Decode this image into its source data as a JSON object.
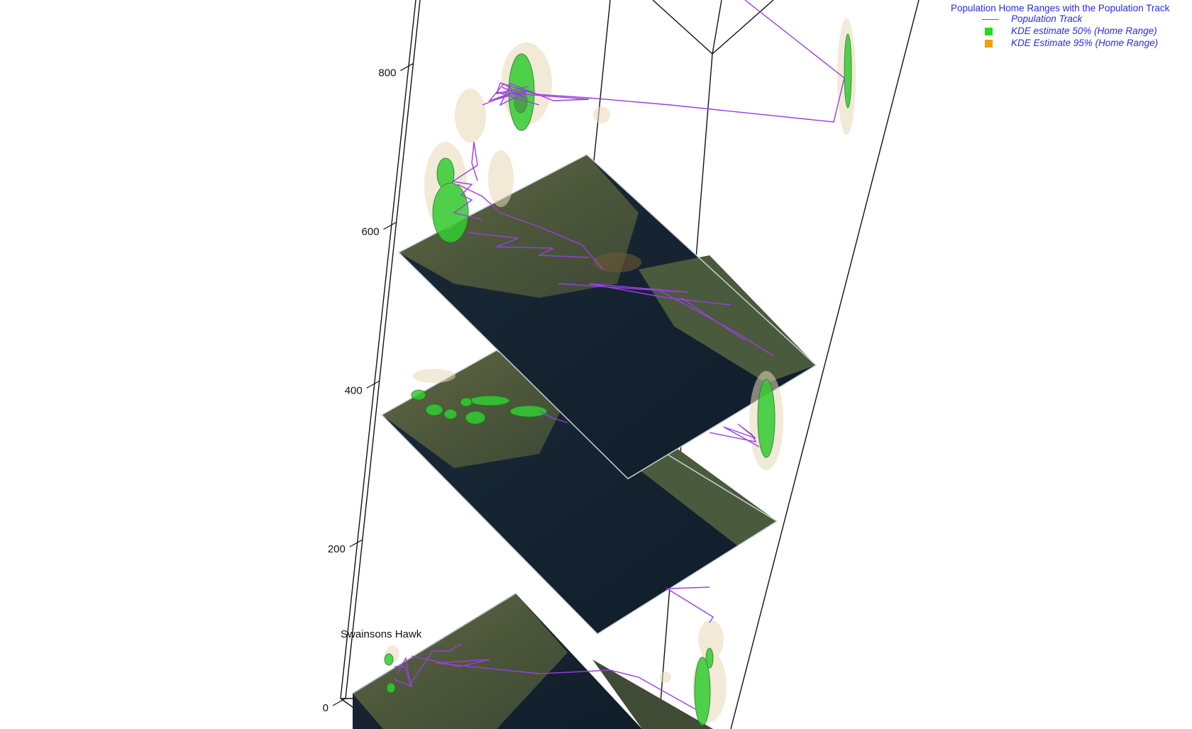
{
  "chart_data": {
    "type": "3d-space-time",
    "title": "",
    "legend": {
      "title": "Population Home Ranges with the Population Track",
      "placement": "top-right",
      "entries": [
        {
          "label": "Population Track",
          "symbol": "line",
          "color": "#9b3fe0"
        },
        {
          "label": "KDE estimate 50% (Home Range)",
          "symbol": "square",
          "color": "#22dd22"
        },
        {
          "label": "KDE Estimate 95% (Home Range)",
          "symbol": "square",
          "color": "#f0a000"
        }
      ]
    },
    "z_axis": {
      "ticks": [
        0,
        200,
        400,
        600,
        800
      ],
      "range": [
        0,
        880
      ]
    },
    "species_label": "Swainsons Hawk",
    "map_layers_z": [
      0,
      400,
      600
    ]
  }
}
